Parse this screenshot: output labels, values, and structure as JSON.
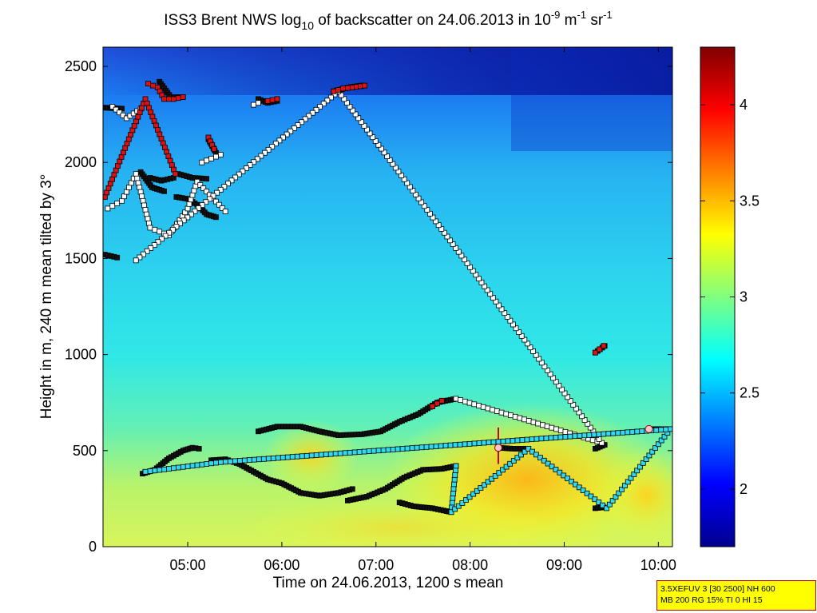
{
  "chart_data": {
    "type": "heatmap",
    "title": {
      "prefix": "ISS3 Brent NWS log",
      "sub": "10",
      "mid": " of backscatter on 24.06.2013 in 10",
      "sup1": "-9",
      "unit1": " m",
      "sup2": "-1",
      "unit2": " sr",
      "sup3": "-1"
    },
    "xlabel": "Time on 24.06.2013, 1200 s mean",
    "ylabel": "Height in m, 240 m mean tilted by 3°",
    "xlim_hours": [
      4.1,
      10.15
    ],
    "ylim": [
      0,
      2600
    ],
    "x_ticks": [
      {
        "value": 5,
        "label": "05:00"
      },
      {
        "value": 6,
        "label": "06:00"
      },
      {
        "value": 7,
        "label": "07:00"
      },
      {
        "value": 8,
        "label": "08:00"
      },
      {
        "value": 9,
        "label": "09:00"
      },
      {
        "value": 10,
        "label": "10:00"
      }
    ],
    "y_ticks": [
      0,
      500,
      1000,
      1500,
      2000,
      2500
    ],
    "colorbar": {
      "range": [
        1.7,
        4.3
      ],
      "ticks": [
        "2",
        "2.5",
        "3",
        "3.5",
        "4"
      ],
      "tick_values": [
        2,
        2.5,
        3,
        3.5,
        4
      ],
      "colormap": [
        "#00008f",
        "#0000ff",
        "#00ffff",
        "#ffff00",
        "#ff0000",
        "#800000"
      ]
    },
    "layer_series": [
      {
        "x": [
          4.52,
          4.65,
          4.8,
          4.95,
          5.05,
          5.12
        ],
        "y": [
          380,
          400,
          460,
          500,
          515,
          510
        ]
      },
      {
        "x": [
          5.25,
          5.4,
          5.55,
          5.7,
          5.85,
          6.0,
          6.2,
          6.4,
          6.6,
          6.75
        ],
        "y": [
          450,
          455,
          430,
          390,
          350,
          330,
          280,
          265,
          280,
          300
        ]
      },
      {
        "x": [
          6.7,
          6.9,
          7.1,
          7.3,
          7.5,
          7.7,
          7.85
        ],
        "y": [
          240,
          260,
          300,
          360,
          400,
          405,
          420
        ]
      },
      {
        "x": [
          7.25,
          7.4,
          7.6,
          7.75,
          7.8
        ],
        "y": [
          230,
          210,
          200,
          185,
          180
        ]
      },
      {
        "x": [
          5.75,
          5.95,
          6.2,
          6.4,
          6.6,
          6.85,
          7.05,
          7.25,
          7.45,
          7.65,
          7.85
        ],
        "y": [
          600,
          625,
          625,
          600,
          580,
          585,
          600,
          650,
          690,
          750,
          770
        ]
      },
      {
        "x": [
          8.3,
          8.45,
          8.62
        ],
        "y": [
          515,
          510,
          510
        ]
      },
      {
        "x": [
          9.33,
          9.43
        ],
        "y": [
          510,
          530
        ]
      },
      {
        "x": [
          9.9,
          10.1
        ],
        "y": [
          612,
          612
        ]
      },
      {
        "x": [
          9.33,
          9.42
        ],
        "y": [
          200,
          205
        ]
      },
      {
        "x": [
          9.33,
          9.43
        ],
        "y": [
          1010,
          1045
        ]
      },
      {
        "x": [
          4.12,
          4.25
        ],
        "y": [
          1520,
          1505
        ]
      },
      {
        "x": [
          4.12,
          4.3
        ],
        "y": [
          2285,
          2280
        ]
      },
      {
        "x": [
          4.5,
          4.62,
          4.75
        ],
        "y": [
          1950,
          1870,
          1850
        ]
      },
      {
        "x": [
          4.6,
          4.72,
          4.85
        ],
        "y": [
          1920,
          1905,
          1920
        ]
      },
      {
        "x": [
          4.88,
          5.0,
          5.1,
          5.2,
          5.3
        ],
        "y": [
          1820,
          1810,
          1780,
          1730,
          1715
        ]
      },
      {
        "x": [
          4.9,
          5.05,
          5.2
        ],
        "y": [
          1940,
          1920,
          1915
        ]
      },
      {
        "x": [
          4.7,
          4.82,
          4.95
        ],
        "y": [
          2420,
          2340,
          2340
        ]
      },
      {
        "x": [
          5.22,
          5.3
        ],
        "y": [
          2120,
          2050
        ]
      },
      {
        "x": [
          5.75,
          5.85,
          5.95
        ],
        "y": [
          2330,
          2310,
          2320
        ]
      },
      {
        "x": [
          6.55,
          6.7,
          6.85
        ],
        "y": [
          2370,
          2390,
          2400
        ]
      }
    ],
    "red_marker_series": [
      {
        "x": [
          4.58,
          4.68,
          4.75,
          4.85,
          4.95
        ],
        "y": [
          2410,
          2390,
          2330,
          2330,
          2340
        ]
      },
      {
        "x": [
          5.22,
          5.28
        ],
        "y": [
          2130,
          2070
        ]
      },
      {
        "x": [
          5.85,
          5.95
        ],
        "y": [
          2320,
          2330
        ]
      },
      {
        "x": [
          6.55,
          6.65,
          6.75,
          6.88
        ],
        "y": [
          2370,
          2385,
          2390,
          2400
        ]
      },
      {
        "x": [
          4.12,
          4.55,
          4.87
        ],
        "y": [
          1820,
          2330,
          1940
        ]
      },
      {
        "x": [
          9.33,
          9.42
        ],
        "y": [
          1010,
          1045
        ]
      },
      {
        "x": [
          7.6,
          7.7
        ],
        "y": [
          730,
          760
        ]
      }
    ],
    "white_marker_series": [
      {
        "x": [
          4.15,
          4.3,
          4.45,
          4.6,
          4.8,
          5.0,
          5.1,
          5.4
        ],
        "y": [
          1760,
          1800,
          1940,
          1660,
          1620,
          1760,
          1900,
          1745
        ]
      },
      {
        "x": [
          4.2,
          4.35,
          4.5
        ],
        "y": [
          2290,
          2230,
          2280
        ]
      },
      {
        "x": [
          5.35,
          5.15
        ],
        "y": [
          2040,
          2000
        ]
      },
      {
        "x": [
          5.7,
          5.75
        ],
        "y": [
          2300,
          2310
        ]
      },
      {
        "x": [
          7.85,
          9.4,
          6.6,
          4.45
        ],
        "y": [
          770,
          540,
          2370,
          1490
        ]
      }
    ],
    "cyan_marker_series": [
      {
        "x": [
          7.85,
          7.8,
          8.62,
          9.45,
          10.13,
          5.35,
          4.55
        ],
        "y": [
          420,
          180,
          510,
          200,
          612,
          440,
          390
        ]
      }
    ],
    "pink_markers": [
      {
        "x": 8.3,
        "y": 515
      },
      {
        "x": 9.9,
        "y": 612
      }
    ],
    "spikes": [
      {
        "x": 8.3,
        "y_from": 430,
        "y_to": 620
      }
    ]
  },
  "param_box": {
    "line1": "3.5XEFUV 3 [30 2500] NH 600",
    "line2": "MB 200 RG 15% TI 0 HI 15"
  }
}
